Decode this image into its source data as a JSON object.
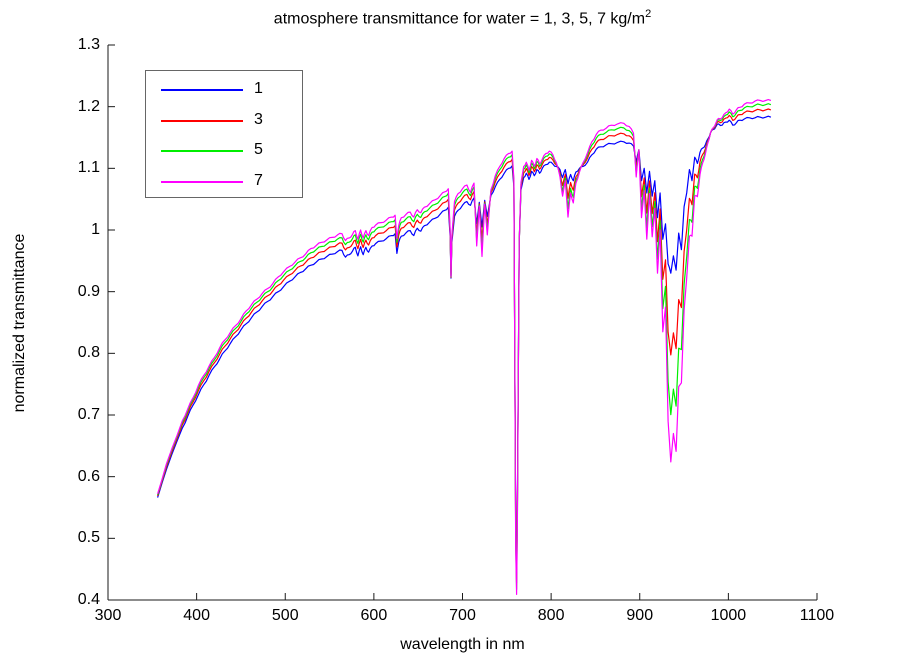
{
  "chart_data": {
    "type": "line",
    "title_main": "atmosphere transmittance for water = 1, 3, 5, 7 kg/m",
    "title_sup": "2",
    "xlabel": "wavelength in nm",
    "ylabel": "normalized transmittance",
    "xlim": [
      300,
      1100
    ],
    "ylim": [
      0.4,
      1.3
    ],
    "grid": false,
    "legend_position": "upper-left-inside",
    "xticks": {
      "values": [
        300,
        400,
        500,
        600,
        700,
        800,
        900,
        1000,
        1100
      ],
      "labels": [
        "300",
        "400",
        "500",
        "600",
        "700",
        "800",
        "900",
        "1000",
        "1100"
      ]
    },
    "yticks": {
      "values": [
        0.4,
        0.5,
        0.6,
        0.7,
        0.8,
        0.9,
        1.0,
        1.1,
        1.2,
        1.3
      ],
      "labels": [
        "0.4",
        "0.5",
        "0.6",
        "0.7",
        "0.8",
        "0.9",
        "1",
        "1.1",
        "1.2",
        "1.3"
      ]
    },
    "axis_color": "#1a1a1a",
    "series": [
      {
        "name": "1",
        "water_kg_m2": 1,
        "color": "#0000ff"
      },
      {
        "name": "3",
        "water_kg_m2": 3,
        "color": "#ff0000"
      },
      {
        "name": "5",
        "water_kg_m2": 5,
        "color": "#00ee00"
      },
      {
        "name": "7",
        "water_kg_m2": 7,
        "color": "#ff00ff"
      }
    ],
    "series_weights": [
      0,
      1.3,
      2.25,
      3
    ],
    "anchors_format": "[wavelength_nm, transmittance_water1, per_step_offset]; value for series k = base + weight[k]*offset",
    "anchors": [
      [
        356,
        0.566,
        0.002
      ],
      [
        361,
        0.59,
        0.002
      ],
      [
        366,
        0.612,
        0.003
      ],
      [
        372,
        0.636,
        0.003
      ],
      [
        378,
        0.658,
        0.003
      ],
      [
        384,
        0.679,
        0.004
      ],
      [
        390,
        0.698,
        0.004
      ],
      [
        396,
        0.716,
        0.004
      ],
      [
        402,
        0.733,
        0.005
      ],
      [
        408,
        0.749,
        0.005
      ],
      [
        414,
        0.764,
        0.005
      ],
      [
        420,
        0.778,
        0.005
      ],
      [
        426,
        0.791,
        0.006
      ],
      [
        432,
        0.804,
        0.006
      ],
      [
        438,
        0.816,
        0.006
      ],
      [
        444,
        0.827,
        0.006
      ],
      [
        450,
        0.838,
        0.006
      ],
      [
        456,
        0.848,
        0.007
      ],
      [
        462,
        0.858,
        0.007
      ],
      [
        468,
        0.867,
        0.007
      ],
      [
        474,
        0.876,
        0.007
      ],
      [
        480,
        0.884,
        0.007
      ],
      [
        486,
        0.892,
        0.007
      ],
      [
        492,
        0.9,
        0.008
      ],
      [
        498,
        0.908,
        0.008
      ],
      [
        505,
        0.917,
        0.008
      ],
      [
        511,
        0.924,
        0.008
      ],
      [
        517,
        0.931,
        0.008
      ],
      [
        523,
        0.937,
        0.008
      ],
      [
        529,
        0.943,
        0.009
      ],
      [
        535,
        0.948,
        0.009
      ],
      [
        541,
        0.953,
        0.009
      ],
      [
        547,
        0.957,
        0.009
      ],
      [
        553,
        0.961,
        0.009
      ],
      [
        559,
        0.965,
        0.009
      ],
      [
        564,
        0.967,
        0.009
      ],
      [
        568,
        0.956,
        0.009
      ],
      [
        572,
        0.96,
        0.009
      ],
      [
        576,
        0.966,
        0.009
      ],
      [
        579,
        0.972,
        0.009
      ],
      [
        582,
        0.958,
        0.009
      ],
      [
        585,
        0.973,
        0.009
      ],
      [
        588,
        0.96,
        0.009
      ],
      [
        591,
        0.972,
        0.009
      ],
      [
        594,
        0.964,
        0.009
      ],
      [
        598,
        0.974,
        0.01
      ],
      [
        602,
        0.978,
        0.01
      ],
      [
        608,
        0.982,
        0.01
      ],
      [
        614,
        0.986,
        0.01
      ],
      [
        620,
        0.991,
        0.01
      ],
      [
        624,
        0.994,
        0.01
      ],
      [
        626,
        0.962,
        0.008
      ],
      [
        628,
        0.98,
        0.009
      ],
      [
        631,
        0.99,
        0.01
      ],
      [
        636,
        0.995,
        0.01
      ],
      [
        641,
        0.999,
        0.01
      ],
      [
        645,
        0.991,
        0.01
      ],
      [
        649,
        1.003,
        0.01
      ],
      [
        653,
        0.998,
        0.01
      ],
      [
        657,
        1.007,
        0.01
      ],
      [
        663,
        1.013,
        0.01
      ],
      [
        669,
        1.019,
        0.01
      ],
      [
        675,
        1.026,
        0.01
      ],
      [
        680,
        1.032,
        0.01
      ],
      [
        684,
        1.037,
        0.01
      ],
      [
        686,
        0.99,
        0.004
      ],
      [
        687,
        0.922,
        0.001
      ],
      [
        688,
        0.98,
        0.004
      ],
      [
        691,
        1.022,
        0.008
      ],
      [
        695,
        1.032,
        0.009
      ],
      [
        700,
        1.04,
        0.009
      ],
      [
        705,
        1.046,
        0.009
      ],
      [
        709,
        1.04,
        0.007
      ],
      [
        713,
        1.052,
        0.008
      ],
      [
        716,
        1.01,
        -0.012
      ],
      [
        719,
        1.045,
        -0.002
      ],
      [
        722,
        1.005,
        -0.016
      ],
      [
        725,
        1.048,
        -0.002
      ],
      [
        728,
        1.022,
        -0.01
      ],
      [
        732,
        1.056,
        0.003
      ],
      [
        737,
        1.07,
        0.006
      ],
      [
        742,
        1.082,
        0.007
      ],
      [
        747,
        1.092,
        0.008
      ],
      [
        752,
        1.1,
        0.008
      ],
      [
        756,
        1.104,
        0.008
      ],
      [
        758,
        1.07,
        0.004
      ],
      [
        760,
        0.52,
        -0.012
      ],
      [
        761,
        0.442,
        -0.011
      ],
      [
        762,
        0.56,
        -0.01
      ],
      [
        764,
        0.98,
        0.0
      ],
      [
        766,
        1.065,
        0.004
      ],
      [
        769,
        1.085,
        0.006
      ],
      [
        772,
        1.092,
        0.006
      ],
      [
        775,
        1.082,
        0.005
      ],
      [
        778,
        1.095,
        0.006
      ],
      [
        781,
        1.088,
        0.005
      ],
      [
        784,
        1.098,
        0.006
      ],
      [
        787,
        1.092,
        0.005
      ],
      [
        790,
        1.1,
        0.005
      ],
      [
        794,
        1.106,
        0.006
      ],
      [
        798,
        1.11,
        0.006
      ],
      [
        802,
        1.107,
        0.005
      ],
      [
        806,
        1.103,
        0.002
      ],
      [
        810,
        1.098,
        -0.004
      ],
      [
        813,
        1.085,
        -0.01
      ],
      [
        816,
        1.098,
        -0.006
      ],
      [
        819,
        1.075,
        -0.018
      ],
      [
        822,
        1.09,
        -0.01
      ],
      [
        825,
        1.08,
        -0.012
      ],
      [
        828,
        1.094,
        -0.006
      ],
      [
        832,
        1.1,
        -0.002
      ],
      [
        836,
        1.103,
        0.002
      ],
      [
        841,
        1.11,
        0.005
      ],
      [
        846,
        1.122,
        0.007
      ],
      [
        851,
        1.131,
        0.008
      ],
      [
        856,
        1.135,
        0.009
      ],
      [
        862,
        1.138,
        0.009
      ],
      [
        868,
        1.14,
        0.01
      ],
      [
        875,
        1.142,
        0.01
      ],
      [
        882,
        1.143,
        0.01
      ],
      [
        888,
        1.141,
        0.009
      ],
      [
        893,
        1.136,
        0.007
      ],
      [
        896,
        1.11,
        -0.008
      ],
      [
        899,
        1.13,
        0.0
      ],
      [
        902,
        1.08,
        -0.02
      ],
      [
        905,
        1.1,
        -0.012
      ],
      [
        908,
        1.06,
        -0.025
      ],
      [
        911,
        1.095,
        -0.012
      ],
      [
        914,
        1.055,
        -0.022
      ],
      [
        917,
        1.08,
        -0.015
      ],
      [
        920,
        1.02,
        -0.03
      ],
      [
        923,
        1.06,
        -0.02
      ],
      [
        926,
        0.985,
        -0.05
      ],
      [
        929,
        1.01,
        -0.045
      ],
      [
        932,
        0.945,
        -0.085
      ],
      [
        935,
        0.93,
        -0.102
      ],
      [
        938,
        0.958,
        -0.096
      ],
      [
        941,
        0.935,
        -0.098
      ],
      [
        944,
        0.995,
        -0.083
      ],
      [
        947,
        0.968,
        -0.072
      ],
      [
        950,
        1.038,
        -0.056
      ],
      [
        953,
        1.06,
        -0.046
      ],
      [
        956,
        1.098,
        -0.036
      ],
      [
        959,
        1.08,
        -0.03
      ],
      [
        962,
        1.118,
        -0.021
      ],
      [
        965,
        1.108,
        -0.018
      ],
      [
        968,
        1.126,
        -0.012
      ],
      [
        971,
        1.133,
        -0.008
      ],
      [
        974,
        1.138,
        -0.005
      ],
      [
        977,
        1.148,
        -0.002
      ],
      [
        980,
        1.158,
        0.0
      ],
      [
        983,
        1.163,
        0.001
      ],
      [
        986,
        1.168,
        0.002
      ],
      [
        989,
        1.172,
        0.003
      ],
      [
        993,
        1.17,
        0.004
      ],
      [
        997,
        1.175,
        0.005
      ],
      [
        1001,
        1.178,
        0.006
      ],
      [
        1005,
        1.17,
        0.006
      ],
      [
        1009,
        1.174,
        0.007
      ],
      [
        1013,
        1.178,
        0.007
      ],
      [
        1018,
        1.18,
        0.008
      ],
      [
        1024,
        1.182,
        0.008
      ],
      [
        1030,
        1.182,
        0.009
      ],
      [
        1036,
        1.183,
        0.009
      ],
      [
        1042,
        1.183,
        0.009
      ],
      [
        1048,
        1.183,
        0.009
      ]
    ]
  }
}
